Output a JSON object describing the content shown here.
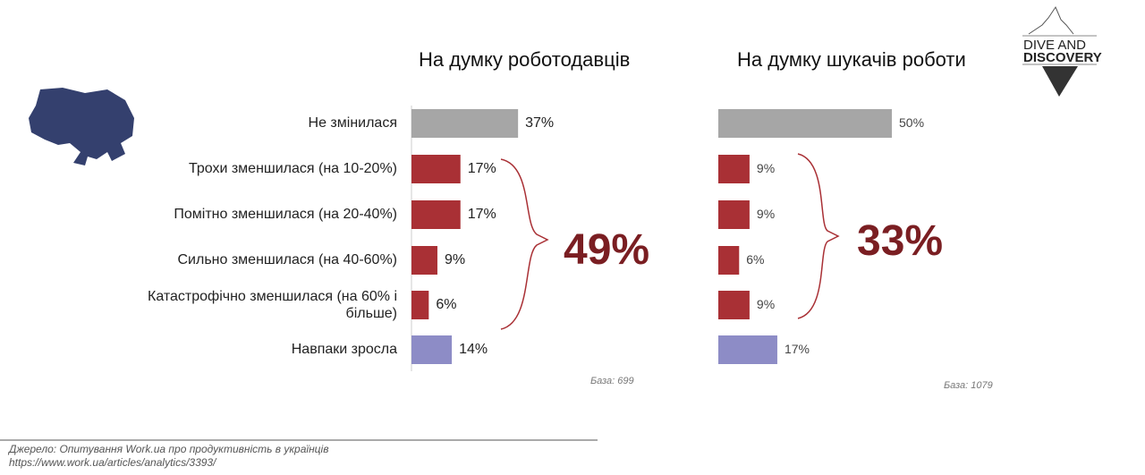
{
  "chart_data": [
    {
      "type": "bar",
      "orientation": "horizontal",
      "title": "На думку роботодавців",
      "categories": [
        "Не змінилася",
        "Трохи зменшилася (на 10-20%)",
        "Помітно зменшилася (на 20-40%)",
        "Сильно зменшилася (на 40-60%)",
        "Катастрофічно зменшилася (на 60% і більше)",
        "Навпаки зросла"
      ],
      "values": [
        37,
        17,
        17,
        9,
        6,
        14
      ],
      "labels": [
        "37%",
        "17%",
        "17%",
        "9%",
        "6%",
        "14%"
      ],
      "colors": [
        "#a6a6a6",
        "#a93035",
        "#a93035",
        "#a93035",
        "#a93035",
        "#8d8cc6"
      ],
      "total_label": "49%",
      "base": "База: 699"
    },
    {
      "type": "bar",
      "orientation": "horizontal",
      "title": "На думку шукачів роботи",
      "values": [
        50,
        9,
        9,
        6,
        9,
        17
      ],
      "labels": [
        "50%",
        "9%",
        "9%",
        "6%",
        "9%",
        "17%"
      ],
      "colors": [
        "#a6a6a6",
        "#a93035",
        "#a93035",
        "#a93035",
        "#a93035",
        "#8d8cc6"
      ],
      "total_label": "33%",
      "base": "База: 1079"
    }
  ],
  "logo": {
    "line1": "DIVE AND",
    "line2": "DISCOVERY"
  },
  "source": {
    "line1": "Джерело: Опитування Work.ua про продуктивність в українців",
    "line2": "https://www.work.ua/articles/analytics/3393/"
  }
}
